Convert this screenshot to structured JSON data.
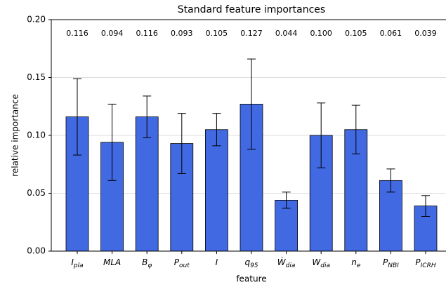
{
  "chart_data": {
    "type": "bar",
    "title": "Standard feature importances",
    "xlabel": "feature",
    "ylabel": "relative importance",
    "categories": [
      "I_pla",
      "MLA",
      "B_φ",
      "P_out",
      "I",
      "q_95",
      "Ẇ_dia",
      "W_dia",
      "n_e",
      "P_NBI",
      "P_ICRH"
    ],
    "values": [
      0.116,
      0.094,
      0.116,
      0.093,
      0.105,
      0.127,
      0.044,
      0.1,
      0.105,
      0.061,
      0.039
    ],
    "value_labels": [
      "0.116",
      "0.094",
      "0.116",
      "0.093",
      "0.105",
      "0.127",
      "0.044",
      "0.100",
      "0.105",
      "0.061",
      "0.039"
    ],
    "errors": [
      0.033,
      0.033,
      0.018,
      0.026,
      0.014,
      0.039,
      0.007,
      0.028,
      0.021,
      0.01,
      0.009
    ],
    "color": "#4169e1",
    "ylim": [
      0,
      0.2
    ],
    "yticks": [
      {
        "value": 0,
        "label": "0.00"
      },
      {
        "value": 0.05,
        "label": "0.05"
      },
      {
        "value": 0.1,
        "label": "0.10"
      },
      {
        "value": 0.15,
        "label": "0.15"
      },
      {
        "value": 0.2,
        "label": "0.20"
      }
    ],
    "grid": true
  }
}
